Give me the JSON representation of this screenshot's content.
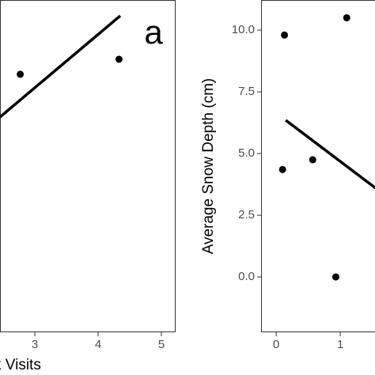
{
  "chart_data": [
    {
      "type": "scatter",
      "xlabel": "k Visits",
      "annotation": "a",
      "xlim": [
        2.45,
        5.225
      ],
      "ylim": [
        -2.24,
        11.22
      ],
      "xticks": [
        3,
        4,
        5
      ],
      "points": {
        "x": [
          2.77,
          4.33
        ],
        "y": [
          8.21,
          8.82
        ]
      },
      "trend": {
        "x": [
          2.45,
          4.35
        ],
        "y": [
          6.48,
          10.58
        ]
      }
    },
    {
      "type": "scatter",
      "ylabel": "Average Snow Depth (cm)",
      "xlim": [
        -0.235,
        1.8
      ],
      "ylim": [
        -2.24,
        11.22
      ],
      "xticks": [
        0,
        1
      ],
      "yticks": [
        {
          "value": 0,
          "label": "0.0"
        },
        {
          "value": 2.5,
          "label": "2.5"
        },
        {
          "value": 5,
          "label": "5.0"
        },
        {
          "value": 7.5,
          "label": "7.5"
        },
        {
          "value": 10,
          "label": "10.0"
        }
      ],
      "points": {
        "x": [
          0.13,
          0.1,
          0.57,
          0.93,
          1.1
        ],
        "y": [
          9.8,
          4.35,
          4.75,
          0.0,
          10.5
        ]
      },
      "trend": {
        "x": [
          0.15,
          1.55
        ],
        "y": [
          6.35,
          3.6
        ]
      }
    }
  ]
}
